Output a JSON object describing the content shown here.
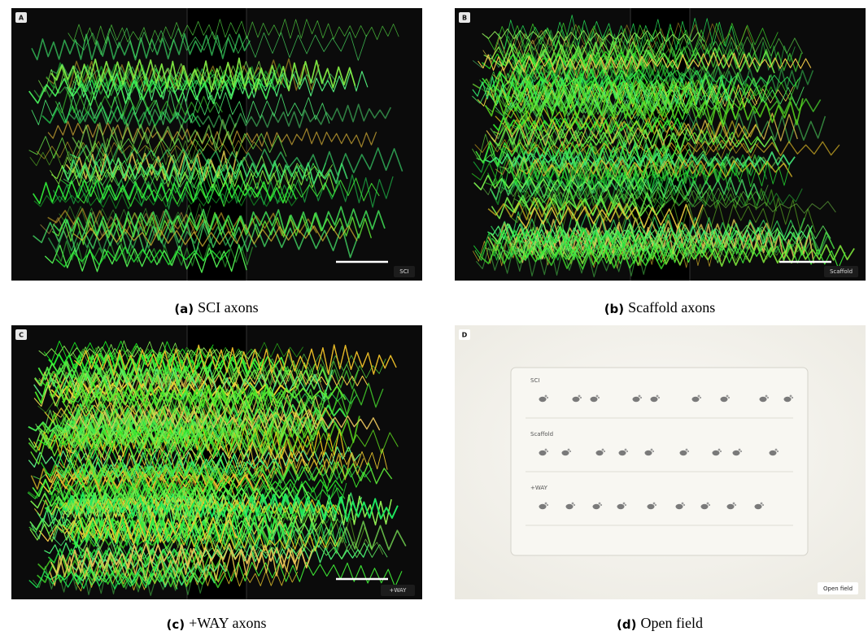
{
  "panels": [
    {
      "label": "A",
      "tag": "SCI",
      "caption": {
        "letter": "(a)",
        "text": "SCI axons"
      }
    },
    {
      "label": "B",
      "tag": "Scaffold",
      "caption": {
        "letter": "(b)",
        "text": "Scaffold axons"
      }
    },
    {
      "label": "C",
      "tag": "+WAY",
      "caption": {
        "letter": "(c)",
        "text": "+WAY axons"
      }
    },
    {
      "label": "D",
      "tag": "Open field",
      "caption": {
        "letter": "(d)",
        "text": "Open field"
      }
    }
  ],
  "open_field": {
    "rows": [
      "SCI",
      "Scaffold",
      "+WAY"
    ]
  }
}
